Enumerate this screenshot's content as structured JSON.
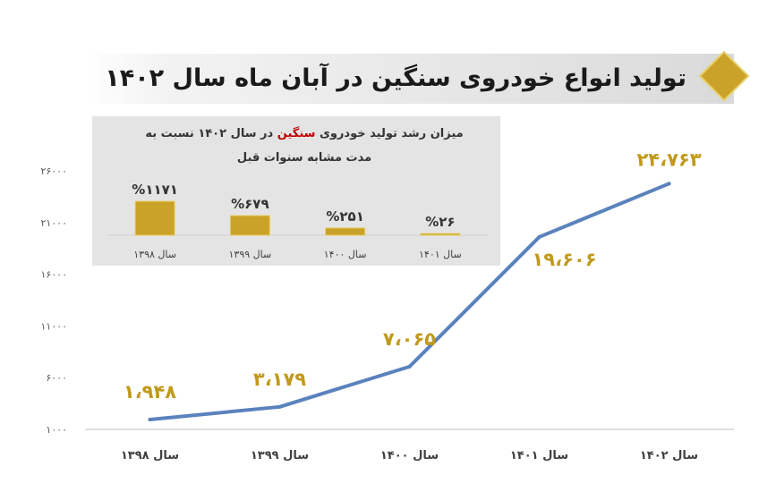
{
  "title": "تولید انواع خودروی سنگین در آبان ماه سال ۱۴۰۲",
  "colors": {
    "accent": "#c9a227",
    "line": "#5a82bd",
    "label": "#c19a1c",
    "inset_bg": "#e4e4e4"
  },
  "inset": {
    "title_before": "میزان رشد تولید خودروی",
    "title_highlight": "سنگین",
    "title_after": "در سال ۱۴۰۲ نسبت به مدت مشابه سنوات قبل"
  },
  "chart_data": [
    {
      "type": "line",
      "categories": [
        "سال ۱۳۹۸",
        "سال ۱۳۹۹",
        "سال ۱۴۰۰",
        "سال ۱۴۰۱",
        "سال ۱۴۰۲"
      ],
      "values": [
        1948,
        3179,
        7065,
        19606,
        24763
      ],
      "data_labels": [
        "۱،۹۴۸",
        "۳،۱۷۹",
        "۷،۰۶۵",
        "۱۹،۶۰۶",
        "۲۴،۷۶۳"
      ],
      "ylim": [
        1000,
        26000
      ],
      "yticks": [
        1000,
        6000,
        11000,
        16000,
        21000,
        26000
      ],
      "ytick_labels": [
        "۱۰۰۰",
        "۶۰۰۰",
        "۱۱۰۰۰",
        "۱۶۰۰۰",
        "۲۱۰۰۰",
        "۲۶۰۰۰"
      ],
      "grid": false
    },
    {
      "type": "bar",
      "categories": [
        "سال ۱۳۹۸",
        "سال ۱۳۹۹",
        "سال ۱۴۰۰",
        "سال ۱۴۰۱"
      ],
      "values": [
        1171,
        679,
        251,
        26
      ],
      "data_labels": [
        "%۱۱۷۱",
        "%۶۷۹",
        "%۲۵۱",
        "%۲۶"
      ]
    }
  ]
}
